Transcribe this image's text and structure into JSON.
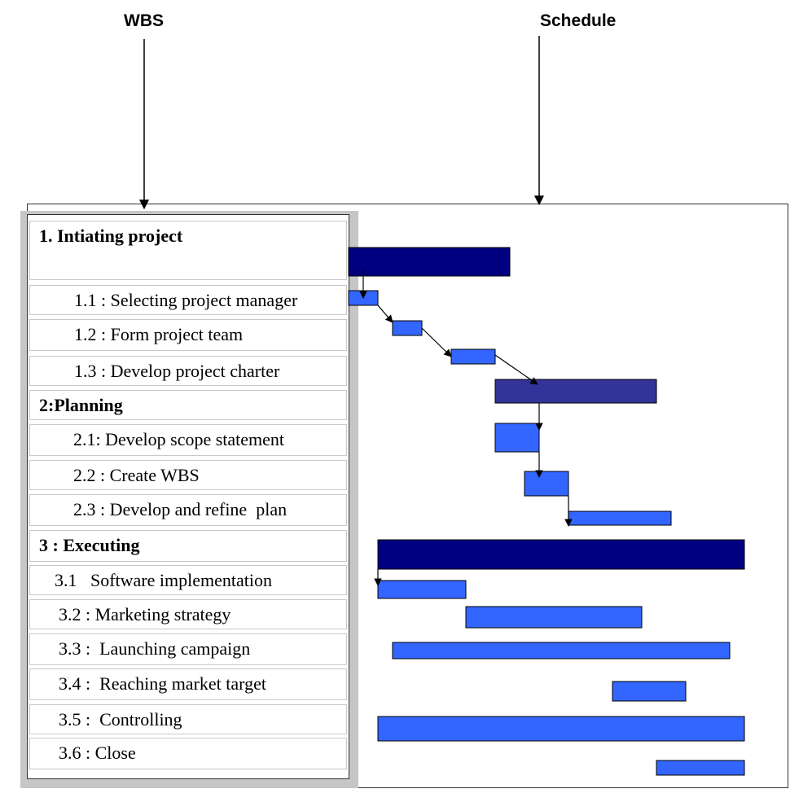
{
  "headers": {
    "wbs": "WBS",
    "schedule": "Schedule"
  },
  "colors": {
    "phase_bar": "#000080",
    "phase_bar_alt": "#333399",
    "task_bar": "#3366ff",
    "arrow": "#000000"
  },
  "rows": [
    {
      "label": "1. Intiating project",
      "type": "phase"
    },
    {
      "label": "1.1 : Selecting project manager",
      "type": "task"
    },
    {
      "label": "1.2 : Form project team",
      "type": "task"
    },
    {
      "label": "1.3 : Develop project charter",
      "type": "task"
    },
    {
      "label": "2:Planning",
      "type": "phase"
    },
    {
      "label": "2.1: Develop scope statement",
      "type": "task"
    },
    {
      "label": "2.2 : Create WBS",
      "type": "task"
    },
    {
      "label": "2.3 : Develop and refine  plan",
      "type": "task"
    },
    {
      "label": "3 : Executing",
      "type": "phase"
    },
    {
      "label": "3.1   Software implementation",
      "type": "task"
    },
    {
      "label": "3.2 : Marketing strategy",
      "type": "task"
    },
    {
      "label": "3.3 :  Launching campaign",
      "type": "task"
    },
    {
      "label": "3.4 :  Reaching market target",
      "type": "task"
    },
    {
      "label": "3.5 :  Controlling",
      "type": "task"
    },
    {
      "label": "3.6 : Close",
      "type": "task"
    }
  ]
}
